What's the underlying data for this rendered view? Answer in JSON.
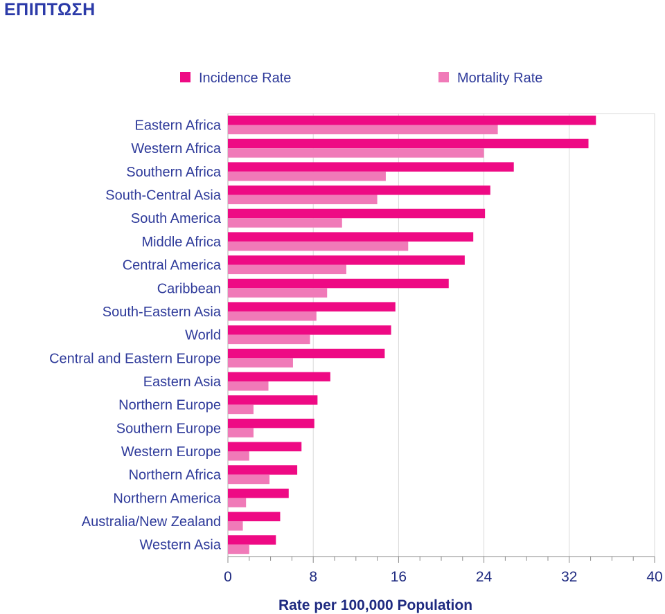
{
  "page_title": "ΕΠΙΠΤΩΣΗ",
  "chart_data": {
    "type": "bar",
    "orientation": "horizontal",
    "xlabel": "Rate per 100,000 Population",
    "xlim": [
      0,
      40
    ],
    "xticks": [
      "0",
      "8",
      "16",
      "24",
      "32",
      "40"
    ],
    "legend_position": "top",
    "grid": true,
    "colors": {
      "Incidence Rate": "#ee0a84",
      "Mortality Rate": "#f07ab8"
    },
    "categories": [
      "Eastern Africa",
      "Western Africa",
      "Southern Africa",
      "South-Central Asia",
      "South America",
      "Middle Africa",
      "Central America",
      "Caribbean",
      "South-Eastern Asia",
      "World",
      "Central and Eastern Europe",
      "Eastern Asia",
      "Northern Europe",
      "Southern Europe",
      "Western Europe",
      "Northern Africa",
      "Northern America",
      "Australia/New Zealand",
      "Western Asia"
    ],
    "series": [
      {
        "name": "Incidence Rate",
        "values": [
          34.5,
          33.8,
          26.8,
          24.6,
          24.1,
          23.0,
          22.2,
          20.7,
          15.7,
          15.3,
          14.7,
          9.6,
          8.4,
          8.1,
          6.9,
          6.5,
          5.7,
          4.9,
          4.5
        ]
      },
      {
        "name": "Mortality Rate",
        "values": [
          25.3,
          24.0,
          14.8,
          14.0,
          10.7,
          16.9,
          11.1,
          9.3,
          8.3,
          7.7,
          6.1,
          3.8,
          2.4,
          2.4,
          2.0,
          3.9,
          1.7,
          1.4,
          2.0
        ]
      }
    ]
  }
}
